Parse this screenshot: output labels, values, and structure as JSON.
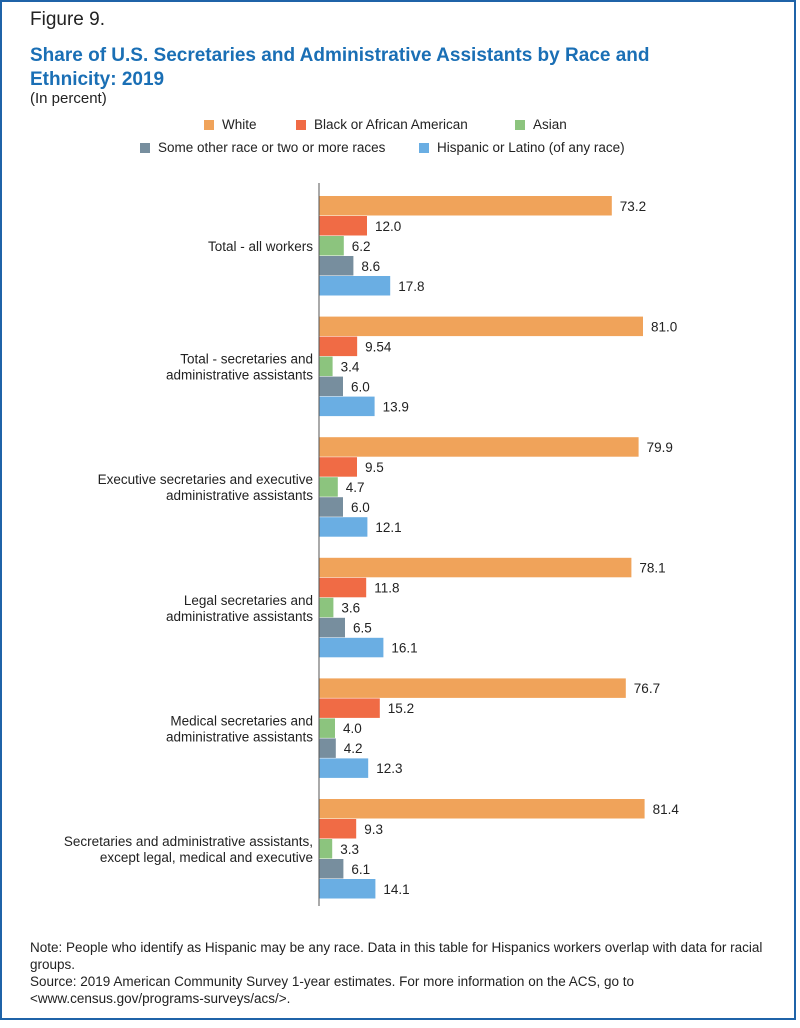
{
  "figure_label": "Figure 9.",
  "title": "Share of U.S. Secretaries and Administrative Assistants by Race and Ethnicity: 2019",
  "subtitle": "(In percent)",
  "colors": {
    "white": "#f0a35a",
    "black": "#f06b45",
    "asian": "#8cc47e",
    "other": "#778e9e",
    "hispanic": "#6aaee3"
  },
  "chart_data": {
    "type": "bar",
    "orientation": "horizontal",
    "xlim": [
      0,
      85
    ],
    "grid": false,
    "legend_position": "top",
    "categories": [
      "Total - all workers",
      "Total - secretaries and administrative assistants",
      "Executive secretaries and executive administrative assistants",
      "Legal secretaries and administrative assistants",
      "Medical secretaries and administrative assistants",
      "Secretaries and administrative assistants, except legal, medical and executive"
    ],
    "category_lines": [
      [
        "Total - all workers"
      ],
      [
        "Total - secretaries and",
        "administrative assistants"
      ],
      [
        "Executive secretaries and executive",
        "administrative assistants"
      ],
      [
        "Legal secretaries and",
        "administrative assistants"
      ],
      [
        "Medical secretaries and",
        "administrative assistants"
      ],
      [
        "Secretaries and administrative assistants,",
        "except legal, medical and executive"
      ]
    ],
    "series": [
      {
        "name": "White",
        "color_key": "white",
        "values": [
          73.2,
          81.0,
          79.9,
          78.1,
          76.7,
          81.4
        ],
        "labels": [
          "73.2",
          "81.0",
          "79.9",
          "78.1",
          "76.7",
          "81.4"
        ]
      },
      {
        "name": "Black or African American",
        "color_key": "black",
        "values": [
          12.0,
          9.54,
          9.5,
          11.8,
          15.2,
          9.3
        ],
        "labels": [
          "12.0",
          "9.54",
          "9.5",
          "11.8",
          "15.2",
          "9.3"
        ]
      },
      {
        "name": "Asian",
        "color_key": "asian",
        "values": [
          6.2,
          3.4,
          4.7,
          3.6,
          4.0,
          3.3
        ],
        "labels": [
          "6.2",
          "3.4",
          "4.7",
          "3.6",
          "4.0",
          "3.3"
        ]
      },
      {
        "name": "Some other race or two or more races",
        "color_key": "other",
        "values": [
          8.6,
          6.0,
          6.0,
          6.5,
          4.2,
          6.1
        ],
        "labels": [
          "8.6",
          "6.0",
          "6.0",
          "6.5",
          "4.2",
          "6.1"
        ]
      },
      {
        "name": "Hispanic or Latino (of any race)",
        "color_key": "hispanic",
        "values": [
          17.8,
          13.9,
          12.1,
          16.1,
          12.3,
          14.1
        ],
        "labels": [
          "17.8",
          "13.9",
          "12.1",
          "16.1",
          "12.3",
          "14.1"
        ]
      }
    ]
  },
  "note": "Note: People who identify as Hispanic may be any race. Data in this table for Hispanics workers overlap with data for racial groups.",
  "source": "Source: 2019 American Community Survey 1-year estimates. For more information on the ACS, go to <www.census.gov/programs-surveys/acs/>."
}
